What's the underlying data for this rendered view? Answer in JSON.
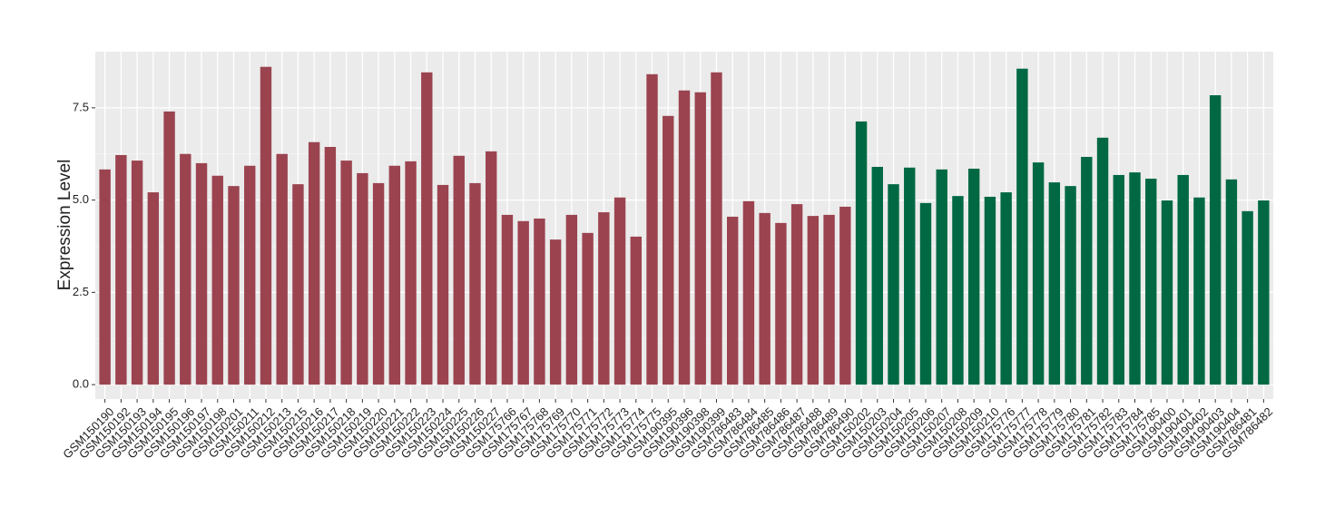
{
  "chart_data": {
    "type": "bar",
    "y_label": "Expression Level",
    "categories": [
      "GSM150190",
      "GSM150192",
      "GSM150193",
      "GSM150194",
      "GSM150195",
      "GSM150196",
      "GSM150197",
      "GSM150198",
      "GSM150201",
      "GSM150211",
      "GSM150212",
      "GSM150213",
      "GSM150215",
      "GSM150216",
      "GSM150217",
      "GSM150218",
      "GSM150219",
      "GSM150220",
      "GSM150221",
      "GSM150222",
      "GSM150223",
      "GSM150224",
      "GSM150225",
      "GSM150226",
      "GSM150227",
      "GSM175766",
      "GSM175767",
      "GSM175768",
      "GSM175769",
      "GSM175770",
      "GSM175771",
      "GSM175772",
      "GSM175773",
      "GSM175774",
      "GSM175775",
      "GSM190395",
      "GSM190396",
      "GSM190398",
      "GSM190399",
      "GSM786483",
      "GSM786484",
      "GSM786485",
      "GSM786486",
      "GSM786487",
      "GSM786488",
      "GSM786489",
      "GSM786490",
      "GSM150202",
      "GSM150203",
      "GSM150204",
      "GSM150205",
      "GSM150206",
      "GSM150207",
      "GSM150208",
      "GSM150209",
      "GSM150210",
      "GSM175776",
      "GSM175777",
      "GSM175778",
      "GSM175779",
      "GSM175780",
      "GSM175781",
      "GSM175782",
      "GSM175783",
      "GSM175784",
      "GSM175785",
      "GSM190400",
      "GSM190401",
      "GSM190402",
      "GSM190403",
      "GSM190404",
      "GSM786481",
      "GSM786482"
    ],
    "values": [
      5.83,
      6.22,
      6.07,
      5.21,
      7.4,
      6.25,
      6.0,
      5.66,
      5.38,
      5.93,
      8.61,
      6.25,
      5.43,
      6.57,
      6.44,
      6.07,
      5.73,
      5.46,
      5.93,
      6.05,
      8.46,
      5.41,
      6.2,
      5.46,
      6.32,
      4.6,
      4.43,
      4.5,
      3.93,
      4.6,
      4.11,
      4.67,
      5.07,
      4.01,
      8.41,
      7.28,
      7.97,
      7.92,
      8.46,
      4.55,
      4.97,
      4.65,
      4.38,
      4.89,
      4.57,
      4.6,
      4.82,
      7.13,
      5.9,
      5.43,
      5.88,
      4.92,
      5.83,
      5.11,
      5.85,
      5.09,
      5.21,
      8.56,
      6.02,
      5.48,
      5.38,
      6.17,
      6.69,
      5.68,
      5.75,
      5.58,
      4.99,
      5.68,
      5.07,
      7.84,
      5.56,
      4.7,
      4.99
    ],
    "colors": [
      "#9b4450",
      "#9b4450",
      "#9b4450",
      "#9b4450",
      "#9b4450",
      "#9b4450",
      "#9b4450",
      "#9b4450",
      "#9b4450",
      "#9b4450",
      "#9b4450",
      "#9b4450",
      "#9b4450",
      "#9b4450",
      "#9b4450",
      "#9b4450",
      "#9b4450",
      "#9b4450",
      "#9b4450",
      "#9b4450",
      "#9b4450",
      "#9b4450",
      "#9b4450",
      "#9b4450",
      "#9b4450",
      "#9b4450",
      "#9b4450",
      "#9b4450",
      "#9b4450",
      "#9b4450",
      "#9b4450",
      "#9b4450",
      "#9b4450",
      "#9b4450",
      "#9b4450",
      "#9b4450",
      "#9b4450",
      "#9b4450",
      "#9b4450",
      "#9b4450",
      "#9b4450",
      "#9b4450",
      "#9b4450",
      "#9b4450",
      "#9b4450",
      "#9b4450",
      "#9b4450",
      "#006944",
      "#006944",
      "#006944",
      "#006944",
      "#006944",
      "#006944",
      "#006944",
      "#006944",
      "#006944",
      "#006944",
      "#006944",
      "#006944",
      "#006944",
      "#006944",
      "#006944",
      "#006944",
      "#006944",
      "#006944",
      "#006944",
      "#006944",
      "#006944",
      "#006944",
      "#006944",
      "#006944",
      "#006944",
      "#006944"
    ],
    "ylim": [
      -0.39,
      9.02
    ],
    "yticks": [
      {
        "value": 0,
        "label": "0.0"
      },
      2.5,
      {
        "value": 5,
        "label": "5.0"
      },
      7.5
    ],
    "grid": true
  }
}
